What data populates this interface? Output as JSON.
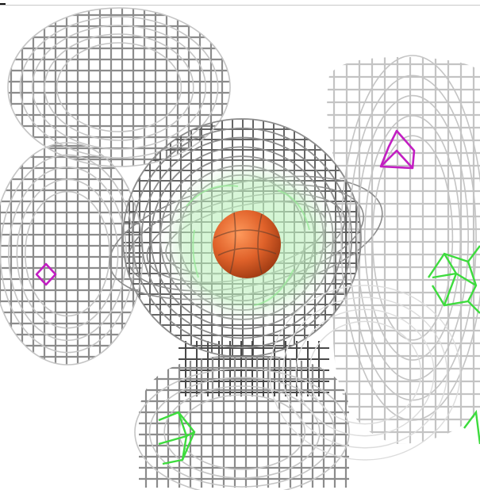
{
  "scene": {
    "background": "#ffffff",
    "mesh_color": "#8c8c8c",
    "mesh_dark": "#4a4a4a",
    "mesh_light": "#c4c4c4",
    "green_color": "#3ddc3d",
    "magenta_color": "#c21fc2",
    "sphere_color": "#e0622a"
  },
  "layers": [
    {
      "name": "gray-electron-density-mesh",
      "color": "#8c8c8c"
    },
    {
      "name": "green-difference-density-mesh",
      "color": "#3ddc3d"
    },
    {
      "name": "magenta-difference-density-mesh",
      "color": "#c21fc2"
    },
    {
      "name": "metal-ion-sphere",
      "color": "#e0622a"
    }
  ]
}
